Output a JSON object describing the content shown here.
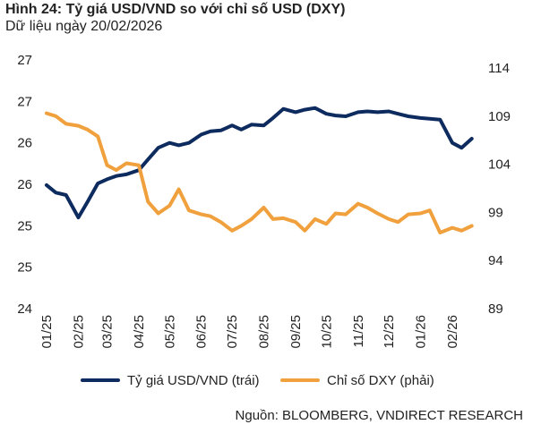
{
  "chart_data": {
    "type": "line",
    "title": "Hình 24: Tỷ giá USD/VND so với chỉ số USD (DXY)",
    "subtitle": "Dữ liệu ngày 20/02/2026",
    "source": "Nguồn: BLOOMBERG, VNDIRECT RESEARCH",
    "x_tick_labels": [
      "01/25",
      "02/25",
      "03/25",
      "04/25",
      "05/25",
      "06/25",
      "07/25",
      "08/25",
      "09/25",
      "10/25",
      "11/25",
      "12/25",
      "01/26",
      "02/26"
    ],
    "x_tick_dates": [
      "2025-01-01",
      "2025-02-01",
      "2025-03-01",
      "2025-04-01",
      "2025-05-01",
      "2025-06-01",
      "2025-07-01",
      "2025-08-01",
      "2025-09-01",
      "2025-10-01",
      "2025-11-01",
      "2025-12-01",
      "2026-01-01",
      "2026-02-01"
    ],
    "y_left": {
      "ylim": [
        24,
        27
      ],
      "tick_values": [
        27,
        26.5,
        26,
        25.5,
        25,
        24.5,
        24
      ],
      "tick_labels": [
        "27",
        "27",
        "26",
        "26",
        "25",
        "25",
        "24"
      ]
    },
    "y_right": {
      "ylim": [
        89,
        114
      ],
      "tick_values": [
        114,
        109,
        104,
        99,
        94,
        89
      ],
      "tick_labels": [
        "114",
        "109",
        "104",
        "99",
        "94",
        "89"
      ]
    },
    "grid": false,
    "legend": "bottom",
    "x": [
      "2025-01-01",
      "2025-01-10",
      "2025-01-20",
      "2025-02-01",
      "2025-02-10",
      "2025-02-20",
      "2025-03-01",
      "2025-03-10",
      "2025-03-20",
      "2025-04-01",
      "2025-04-10",
      "2025-04-20",
      "2025-05-01",
      "2025-05-10",
      "2025-05-20",
      "2025-06-01",
      "2025-06-10",
      "2025-06-20",
      "2025-07-01",
      "2025-07-10",
      "2025-07-20",
      "2025-08-01",
      "2025-08-10",
      "2025-08-20",
      "2025-09-01",
      "2025-09-10",
      "2025-09-20",
      "2025-10-01",
      "2025-10-10",
      "2025-10-20",
      "2025-11-01",
      "2025-11-10",
      "2025-11-20",
      "2025-12-01",
      "2025-12-10",
      "2025-12-20",
      "2026-01-01",
      "2026-01-10",
      "2026-01-20",
      "2026-02-01",
      "2026-02-10",
      "2026-02-20"
    ],
    "series": [
      {
        "name": "Tỷ giá USD/VND (trái)",
        "axis": "left",
        "color": "#0d2b5e",
        "values": [
          25.49,
          25.4,
          25.37,
          25.1,
          25.29,
          25.51,
          25.56,
          25.6,
          25.62,
          25.67,
          25.8,
          25.94,
          26.0,
          25.97,
          26.0,
          26.1,
          26.14,
          26.15,
          26.21,
          26.16,
          26.22,
          26.21,
          26.3,
          26.41,
          26.37,
          26.4,
          26.42,
          26.35,
          26.33,
          26.32,
          26.37,
          26.38,
          26.37,
          26.38,
          26.35,
          26.32,
          26.3,
          26.29,
          26.28,
          26.0,
          25.94,
          26.05
        ]
      },
      {
        "name": "Chỉ số DXY (phải)",
        "axis": "right",
        "color": "#f0a03c",
        "values": [
          109.3,
          109.0,
          108.2,
          108.0,
          107.6,
          106.9,
          103.9,
          103.4,
          104.1,
          103.9,
          100.1,
          98.9,
          99.7,
          101.4,
          99.2,
          98.8,
          98.6,
          98.0,
          97.1,
          97.6,
          98.3,
          99.5,
          98.3,
          98.4,
          98.0,
          97.1,
          98.3,
          97.8,
          98.9,
          98.8,
          99.9,
          99.5,
          98.9,
          98.3,
          98.0,
          98.8,
          98.9,
          99.2,
          96.9,
          97.4,
          97.1,
          97.6
        ]
      }
    ]
  }
}
